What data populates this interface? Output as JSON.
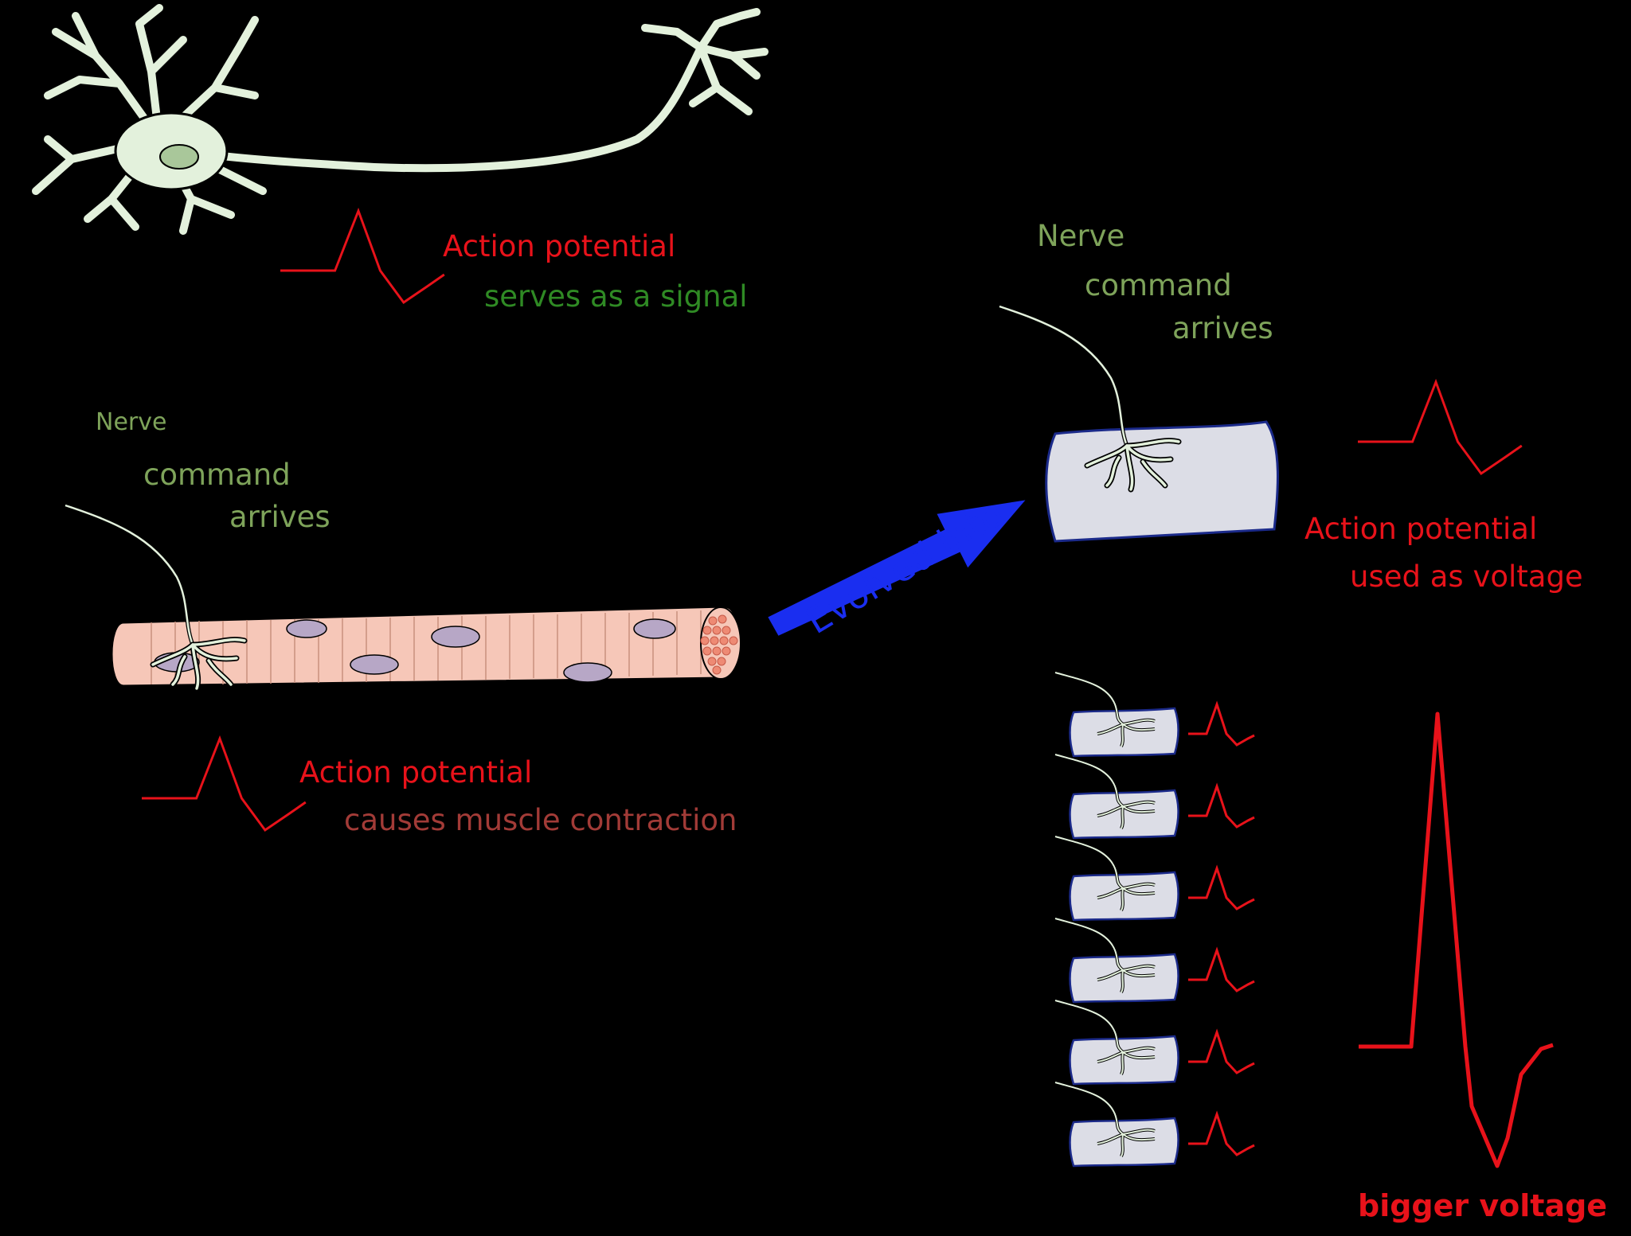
{
  "labels": {
    "neuron_ap": "Action potential",
    "neuron_signal": "serves as a signal",
    "muscle_nerve": "Nerve",
    "muscle_command": "command",
    "muscle_arrives": "arrives",
    "muscle_ap": "Action potential",
    "muscle_causes": "causes muscle contraction",
    "evolved": "Evolved into",
    "electro_nerve": "Nerve",
    "electro_command": "command",
    "electro_arrives": "arrives",
    "electro_ap": "Action potential",
    "electro_voltage": "used as voltage",
    "bigger_voltage": "bigger voltage"
  },
  "colors": {
    "background": "#000000",
    "spike": "#e8121a",
    "neuron_fill": "#e3f1dc",
    "muscle_fill": "#f6c7b8",
    "nucleus_fill": "#b7a7c6",
    "electrocyte_fill": "#dcdde6",
    "arrow": "#1a2ef0"
  },
  "icons": {
    "neuron": "neuron-cell-icon",
    "muscle": "muscle-fiber-icon",
    "electrocyte": "electrocyte-icon",
    "arrow": "evolution-arrow-icon"
  },
  "stack_count": 6
}
